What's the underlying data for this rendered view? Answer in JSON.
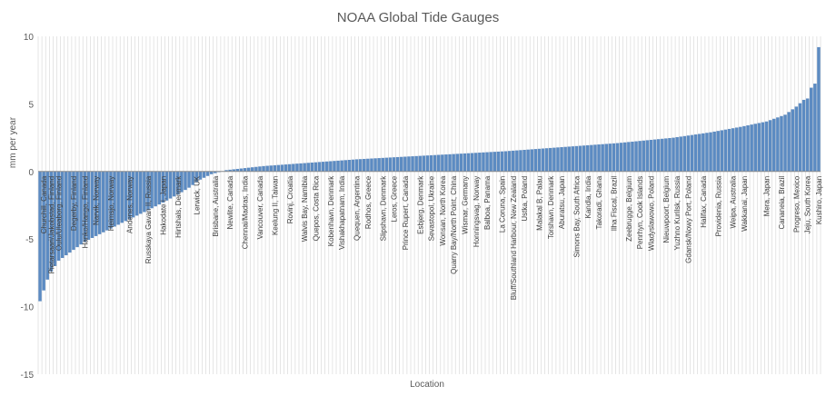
{
  "chart_data": {
    "type": "bar",
    "title": "NOAA Global Tide Gauges",
    "xlabel": "Location",
    "ylabel": "mm per year",
    "ylim": [
      -15,
      10
    ],
    "yticks": [
      "10",
      "5",
      "0",
      "-5",
      "-10",
      "-15"
    ],
    "yticks_values": [
      10,
      5,
      0,
      -5,
      -10,
      -15
    ],
    "grid": "vertical",
    "bar_color": "#4a7ebb",
    "grid_color": "#d4d4d4",
    "bar_count": 210,
    "sorted_values_anchors": [
      [
        0,
        -9.6
      ],
      [
        1,
        -8.8
      ],
      [
        2,
        -8.0
      ],
      [
        3,
        -7.4
      ],
      [
        5,
        -6.6
      ],
      [
        8,
        -6.0
      ],
      [
        12,
        -5.2
      ],
      [
        17,
        -4.5
      ],
      [
        22,
        -3.8
      ],
      [
        28,
        -3.0
      ],
      [
        33,
        -2.3
      ],
      [
        37,
        -1.7
      ],
      [
        40,
        -1.2
      ],
      [
        43,
        -0.6
      ],
      [
        46,
        -0.2
      ],
      [
        50,
        0.1
      ],
      [
        60,
        0.4
      ],
      [
        70,
        0.6
      ],
      [
        85,
        0.9
      ],
      [
        105,
        1.2
      ],
      [
        125,
        1.5
      ],
      [
        140,
        1.8
      ],
      [
        155,
        2.1
      ],
      [
        170,
        2.5
      ],
      [
        180,
        2.9
      ],
      [
        188,
        3.3
      ],
      [
        195,
        3.7
      ],
      [
        200,
        4.2
      ],
      [
        203,
        4.8
      ],
      [
        205,
        5.3
      ],
      [
        206,
        5.4
      ],
      [
        207,
        6.2
      ],
      [
        208,
        6.5
      ],
      [
        209,
        9.2
      ]
    ],
    "labeled_locations": [
      {
        "name": "Churchill, Canada",
        "index": 1
      },
      {
        "name": "Pietarsaari/Jakobstad, Finland",
        "index": 3
      },
      {
        "name": "Oulu/Uleaborg, Finland",
        "index": 5
      },
      {
        "name": "Degerby, Finland",
        "index": 9
      },
      {
        "name": "Hanko/Hango, Finland",
        "index": 12
      },
      {
        "name": "Narvik, Norway",
        "index": 15
      },
      {
        "name": "Heimsjo, Norway",
        "index": 19
      },
      {
        "name": "Andenes, Norway",
        "index": 24
      },
      {
        "name": "Russkaya Gavan II, Russia",
        "index": 29
      },
      {
        "name": "Hakodate I, Japan",
        "index": 33
      },
      {
        "name": "Hirtshals, Denmark",
        "index": 37
      },
      {
        "name": "Lerwick, UK",
        "index": 42
      },
      {
        "name": "Brisbane, Australia",
        "index": 47
      },
      {
        "name": "Newlite, Canada",
        "index": 51
      },
      {
        "name": "Chennai/Madras, India",
        "index": 55
      },
      {
        "name": "Vancouver, Canada",
        "index": 59
      },
      {
        "name": "Keelung II, Taiwan",
        "index": 63
      },
      {
        "name": "Rovinj, Croatia",
        "index": 67
      },
      {
        "name": "Walvis Bay, Namibia",
        "index": 71
      },
      {
        "name": "Quepos, Costa Rica",
        "index": 74
      },
      {
        "name": "Kobenhavn, Denmark",
        "index": 78
      },
      {
        "name": "Vishakhapatnam, India",
        "index": 81
      },
      {
        "name": "Quequen, Argentina",
        "index": 85
      },
      {
        "name": "Rodhos, Greece",
        "index": 88
      },
      {
        "name": "Slipshavn, Denmark",
        "index": 92
      },
      {
        "name": "Leros, Greece",
        "index": 95
      },
      {
        "name": "Prince Rupert, Canada",
        "index": 98
      },
      {
        "name": "Esbjerg, Denmark",
        "index": 102
      },
      {
        "name": "Sevastopol, Ukraine",
        "index": 105
      },
      {
        "name": "Wonsan, North Korea",
        "index": 108
      },
      {
        "name": "Quarry Bay/North Point, China",
        "index": 111
      },
      {
        "name": "Wismar, Germany",
        "index": 114
      },
      {
        "name": "Honningsvag, Norway",
        "index": 117
      },
      {
        "name": "Balboa, Panama",
        "index": 120
      },
      {
        "name": "La Coruna, Spain",
        "index": 124
      },
      {
        "name": "Bluff/Southland Harbour, New Zealand",
        "index": 127
      },
      {
        "name": "Ustka, Poland",
        "index": 130
      },
      {
        "name": "Malakal B, Palau",
        "index": 134
      },
      {
        "name": "Torshavn, Denmark",
        "index": 137
      },
      {
        "name": "Aburatsu, Japan",
        "index": 140
      },
      {
        "name": "Simons Bay, South Africa",
        "index": 144
      },
      {
        "name": "Kandla, India",
        "index": 147
      },
      {
        "name": "Takoradi, Ghana",
        "index": 150
      },
      {
        "name": "Ilha Fiscal, Brazil",
        "index": 154
      },
      {
        "name": "Zeebrugge, Belgium",
        "index": 158
      },
      {
        "name": "Penrhyn, Cook Islands",
        "index": 161
      },
      {
        "name": "Wladyslawowo, Poland",
        "index": 164
      },
      {
        "name": "Nieuwpoort, Belgium",
        "index": 168
      },
      {
        "name": "Yuzhno Kurilsk, Russia",
        "index": 171
      },
      {
        "name": "Gdansk/Nowy Port, Poland",
        "index": 174
      },
      {
        "name": "Halifax, Canada",
        "index": 178
      },
      {
        "name": "Providenia, Russia",
        "index": 182
      },
      {
        "name": "Weipa, Australia",
        "index": 186
      },
      {
        "name": "Wakkanai, Japan",
        "index": 189
      },
      {
        "name": "Mera, Japan",
        "index": 195
      },
      {
        "name": "Cananeia, Brazil",
        "index": 199
      },
      {
        "name": "Progreso, Mexico",
        "index": 203
      },
      {
        "name": "Jeju, South Korea",
        "index": 206
      },
      {
        "name": "Kushiro, Japan",
        "index": 209
      }
    ]
  }
}
